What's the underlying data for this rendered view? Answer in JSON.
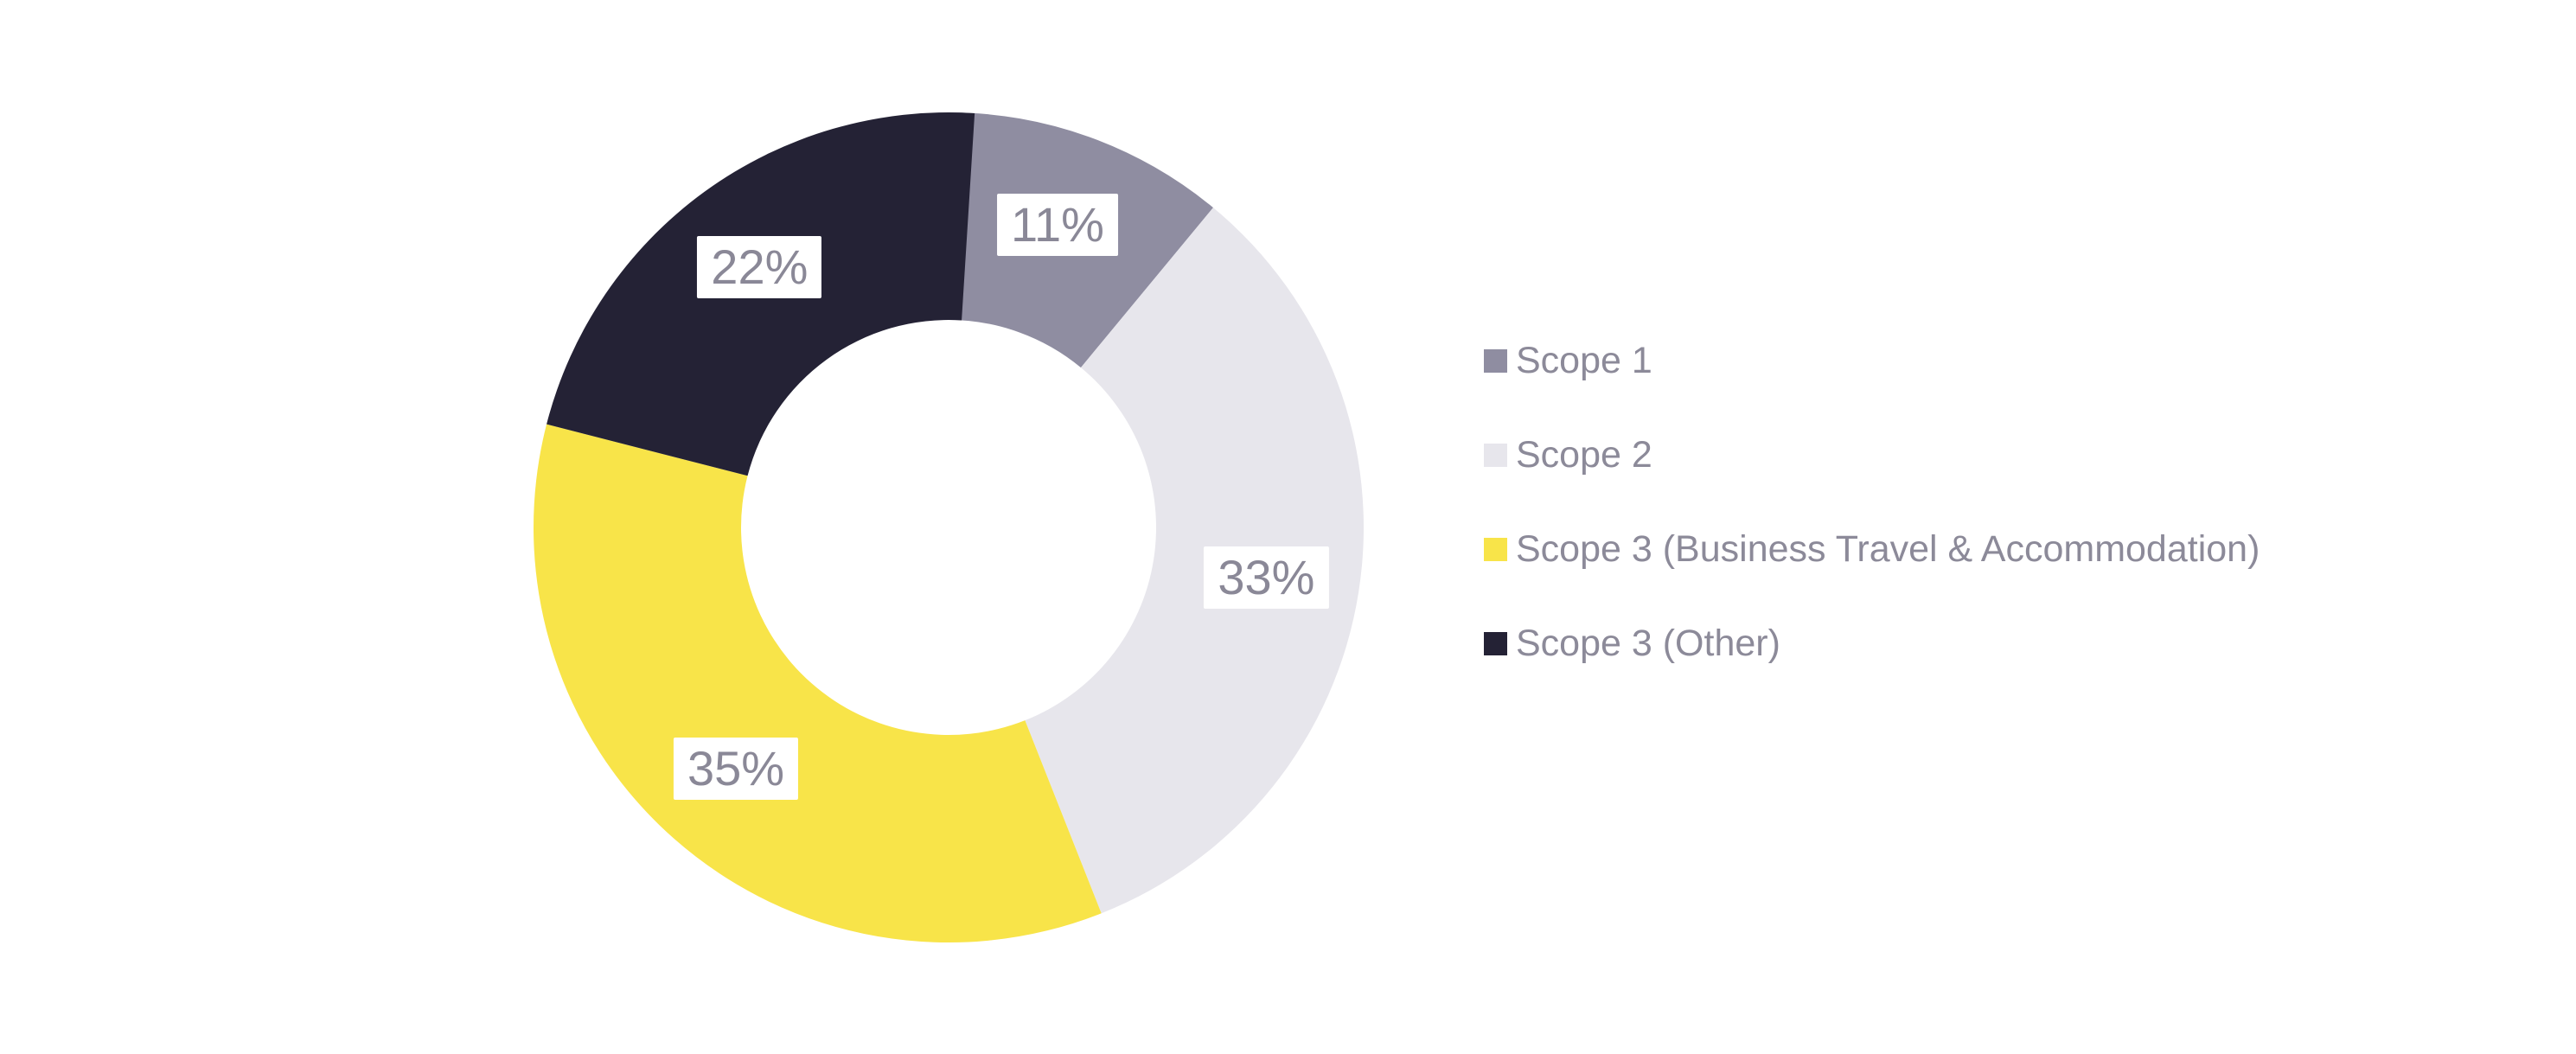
{
  "page": {
    "background_color": "#ffffff"
  },
  "chart_data": {
    "type": "pie",
    "variant": "donut",
    "direction": "clockwise",
    "start_angle_deg": 0,
    "legend_position": "right",
    "unit": "%",
    "categories": [
      "Scope 1",
      "Scope 2",
      "Scope 3 (Business Travel & Accommodation)",
      "Scope 3 (Other)"
    ],
    "values": [
      11,
      33,
      35,
      22
    ],
    "segments": [
      {
        "label": "Scope 1",
        "value": 11,
        "display": "11%",
        "color": "#8F8DA1"
      },
      {
        "label": "Scope 2",
        "value": 33,
        "display": "33%",
        "color": "#E7E6EC"
      },
      {
        "label": "Scope 3 (Business Travel & Accommodation)",
        "value": 35,
        "display": "35%",
        "color": "#F8E449"
      },
      {
        "label": "Scope 3 (Other)",
        "value": 22,
        "display": "22%",
        "color": "#242235"
      }
    ],
    "slice_label_text_color": "#8A8897",
    "slice_label_background": "#FFFFFF",
    "legend_text_color": "#8C8A99",
    "hole_color": "#FFFFFF"
  }
}
